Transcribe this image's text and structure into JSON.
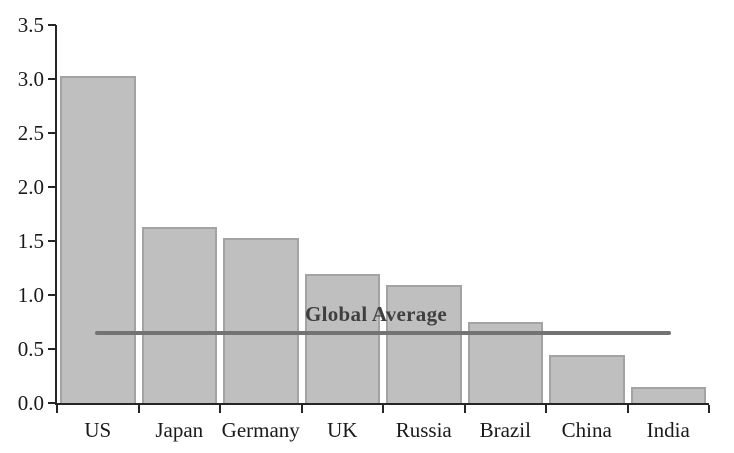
{
  "chart_data": {
    "type": "bar",
    "title": "",
    "xlabel": "",
    "ylabel": "",
    "categories": [
      "US",
      "Japan",
      "Germany",
      "UK",
      "Russia",
      "Brazil",
      "China",
      "India"
    ],
    "values": [
      3.03,
      1.63,
      1.53,
      1.19,
      1.09,
      0.75,
      0.44,
      0.15
    ],
    "ylim": [
      0,
      3.5
    ],
    "ytick_step": 0.5,
    "ytick_labels": [
      "0.0",
      "0.5",
      "1.0",
      "1.5",
      "2.0",
      "2.5",
      "3.0",
      "3.5"
    ],
    "grid": false,
    "legend": "none",
    "reference_line": {
      "label": "Global Average",
      "value": 0.65
    },
    "colors": {
      "bar_fill": "#bfbfbf",
      "bar_border": "#a3a3a3",
      "reference_line": "#737373",
      "axis": "#262626",
      "tick_text": "#1a1a1a",
      "annotation_text": "#3f3f3f",
      "background": "#ffffff"
    }
  }
}
